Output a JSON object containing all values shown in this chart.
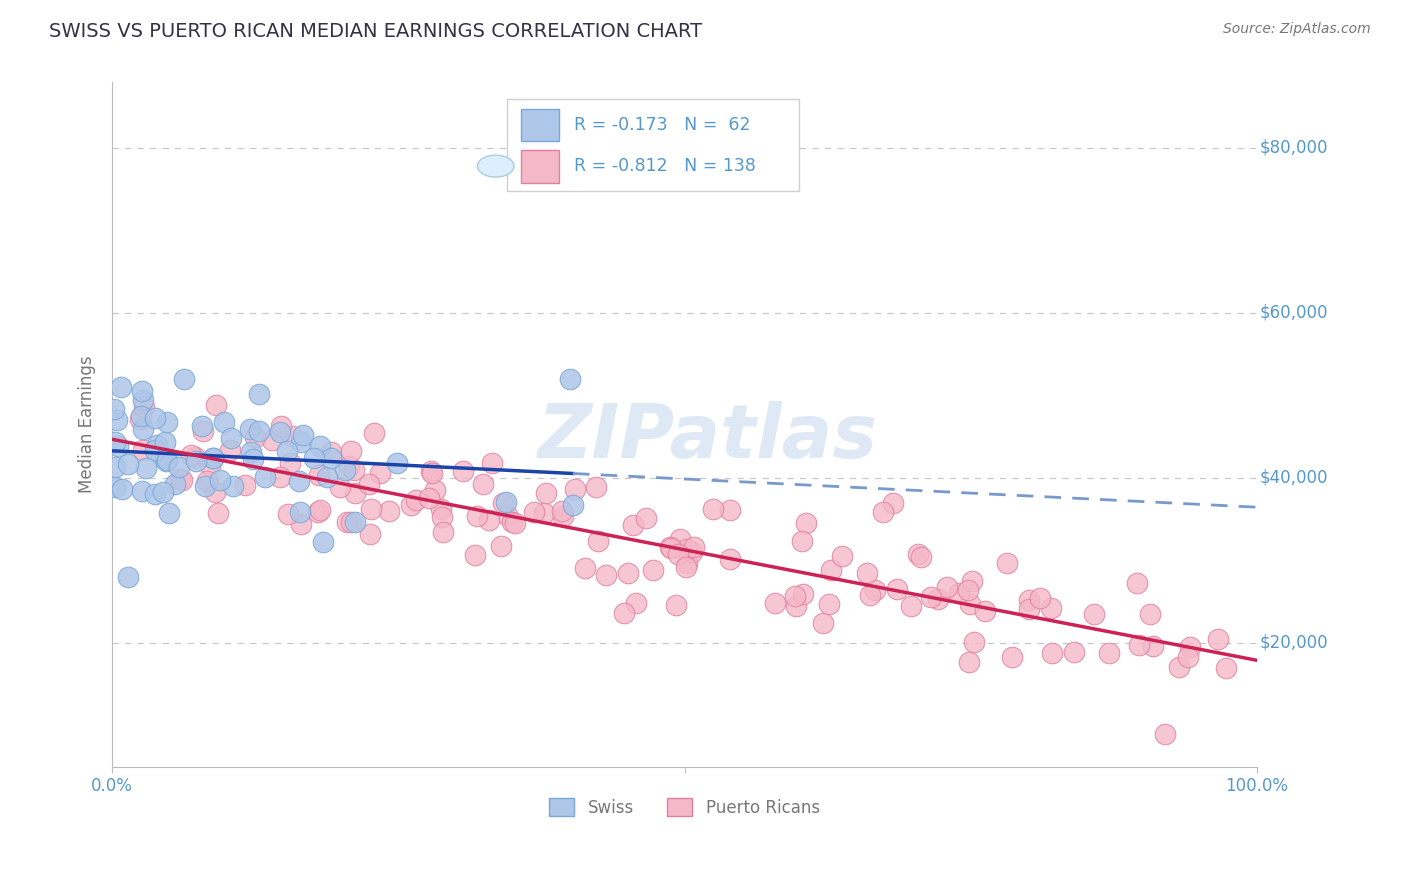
{
  "title": "SWISS VS PUERTO RICAN MEDIAN EARNINGS CORRELATION CHART",
  "source": "Source: ZipAtlas.com",
  "ylabel": "Median Earnings",
  "xlim": [
    0,
    1
  ],
  "ylim": [
    5000,
    88000
  ],
  "yticks": [
    20000,
    40000,
    60000,
    80000
  ],
  "ytick_labels": [
    "$20,000",
    "$40,000",
    "$60,000",
    "$80,000"
  ],
  "grid_color": "#c8c8c8",
  "background_color": "#ffffff",
  "swiss_color": "#aec6e8",
  "swiss_edge_color": "#7aa8d8",
  "pr_color": "#f5b8c8",
  "pr_edge_color": "#e080a0",
  "swiss_line_color": "#1a44aa",
  "swiss_dash_color": "#7799cc",
  "pr_line_color": "#cc2255",
  "swiss_R": -0.173,
  "swiss_N": 62,
  "pr_R": -0.812,
  "pr_N": 138,
  "watermark": "ZIPatlas",
  "legend_swiss": "Swiss",
  "legend_pr": "Puerto Ricans",
  "tick_color": "#5599cc",
  "axis_color": "#bbbbbb",
  "ylabel_color": "#777777",
  "title_color": "#333344",
  "source_color": "#777777"
}
